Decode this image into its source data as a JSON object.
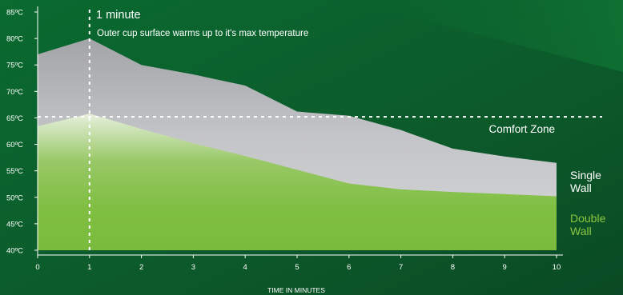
{
  "chart_data": {
    "type": "area",
    "x": [
      0,
      1,
      2,
      3,
      4,
      5,
      6,
      7,
      8,
      9,
      10
    ],
    "xlabel": "TIME IN MINUTES",
    "ylabel": "",
    "xlim": [
      0,
      10
    ],
    "ylim": [
      40,
      85
    ],
    "x_ticks": [
      "0",
      "1",
      "2",
      "3",
      "4",
      "5",
      "6",
      "7",
      "8",
      "9",
      "10"
    ],
    "y_ticks": [
      {
        "value": 40,
        "label": "40ºC"
      },
      {
        "value": 45,
        "label": "45ºC"
      },
      {
        "value": 50,
        "label": "50ºC"
      },
      {
        "value": 55,
        "label": "55ºC"
      },
      {
        "value": 60,
        "label": "60ºC"
      },
      {
        "value": 65,
        "label": "65ºC"
      },
      {
        "value": 70,
        "label": "70ºC"
      },
      {
        "value": 75,
        "label": "75ºC"
      },
      {
        "value": 80,
        "label": "80ºC"
      },
      {
        "value": 85,
        "label": "85ºC"
      }
    ],
    "series": [
      {
        "name": "Single Wall",
        "color": "#bdbec1",
        "values": [
          77,
          80,
          75,
          73.2,
          71.1,
          66.2,
          65.4,
          62.7,
          59.2,
          57.7,
          56.5
        ]
      },
      {
        "name": "Double Wall",
        "color": "#7fbe41",
        "values": [
          63.4,
          65.8,
          62.9,
          60.2,
          57.8,
          55.2,
          52.6,
          51.5,
          51.0,
          50.6,
          50.2
        ]
      }
    ],
    "comfort_zone": {
      "value": 65.2,
      "label": "Comfort Zone"
    },
    "marker": {
      "x": 1,
      "title": "1 minute",
      "text": "Outer cup surface warms up to it's max temperature"
    },
    "grid": false,
    "legend": "right"
  }
}
